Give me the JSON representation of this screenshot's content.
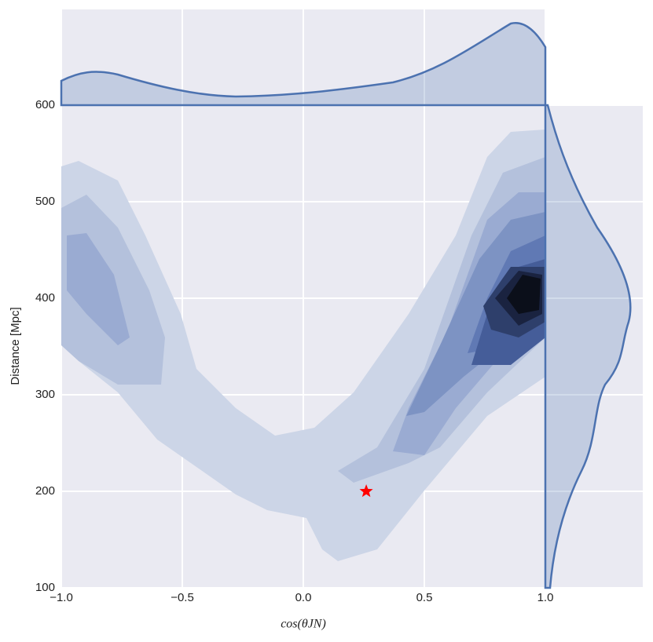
{
  "chart_data": {
    "type": "scatter",
    "xlabel": "cos(θJN)",
    "ylabel": "Distance [Mpc]",
    "x": [
      0.26
    ],
    "y": [
      200
    ],
    "color": "#ff0000",
    "marker": "star",
    "xlim": [
      -1,
      1
    ],
    "ylim": [
      100,
      600
    ],
    "xticks": [
      {
        "value": -1,
        "label": "−1.0"
      },
      {
        "value": -0.5,
        "label": "−0.5"
      },
      {
        "value": 0,
        "label": "0.0"
      },
      {
        "value": 0.5,
        "label": "0.5"
      },
      {
        "value": 1,
        "label": "1.0"
      }
    ],
    "yticks": [
      100,
      200,
      300,
      400,
      500,
      600
    ],
    "grid": true
  }
}
